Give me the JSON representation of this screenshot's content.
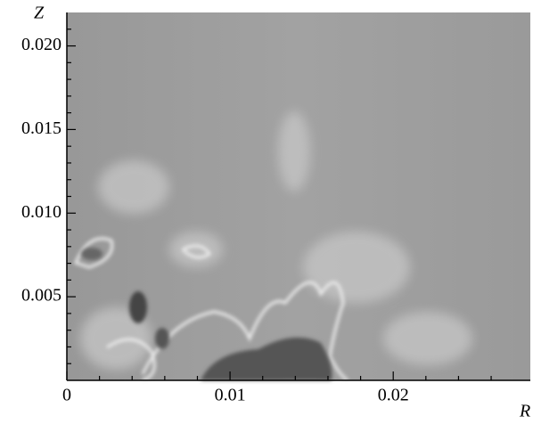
{
  "chart_data": {
    "type": "image",
    "x_label": "R",
    "y_label": "Z",
    "xlim": [
      0,
      0.0284
    ],
    "ylim": [
      0,
      0.022
    ],
    "xticks": [
      0,
      0.01,
      0.02
    ],
    "yticks": [
      {
        "value": 0.005,
        "label": "0.005"
      },
      {
        "value": 0.01,
        "label": "0.010"
      },
      {
        "value": 0.015,
        "label": "0.015"
      },
      {
        "value": 0.02,
        "label": "0.020"
      }
    ],
    "xminorticks": [
      0.002,
      0.004,
      0.006,
      0.008,
      0.012,
      0.014,
      0.016,
      0.018,
      0.022,
      0.024,
      0.026
    ],
    "yminorticks": [
      0.001,
      0.002,
      0.003,
      0.004,
      0.006,
      0.007,
      0.008,
      0.009,
      0.011,
      0.012,
      0.013,
      0.014,
      0.016,
      0.017,
      0.018,
      0.019,
      0.021
    ]
  }
}
